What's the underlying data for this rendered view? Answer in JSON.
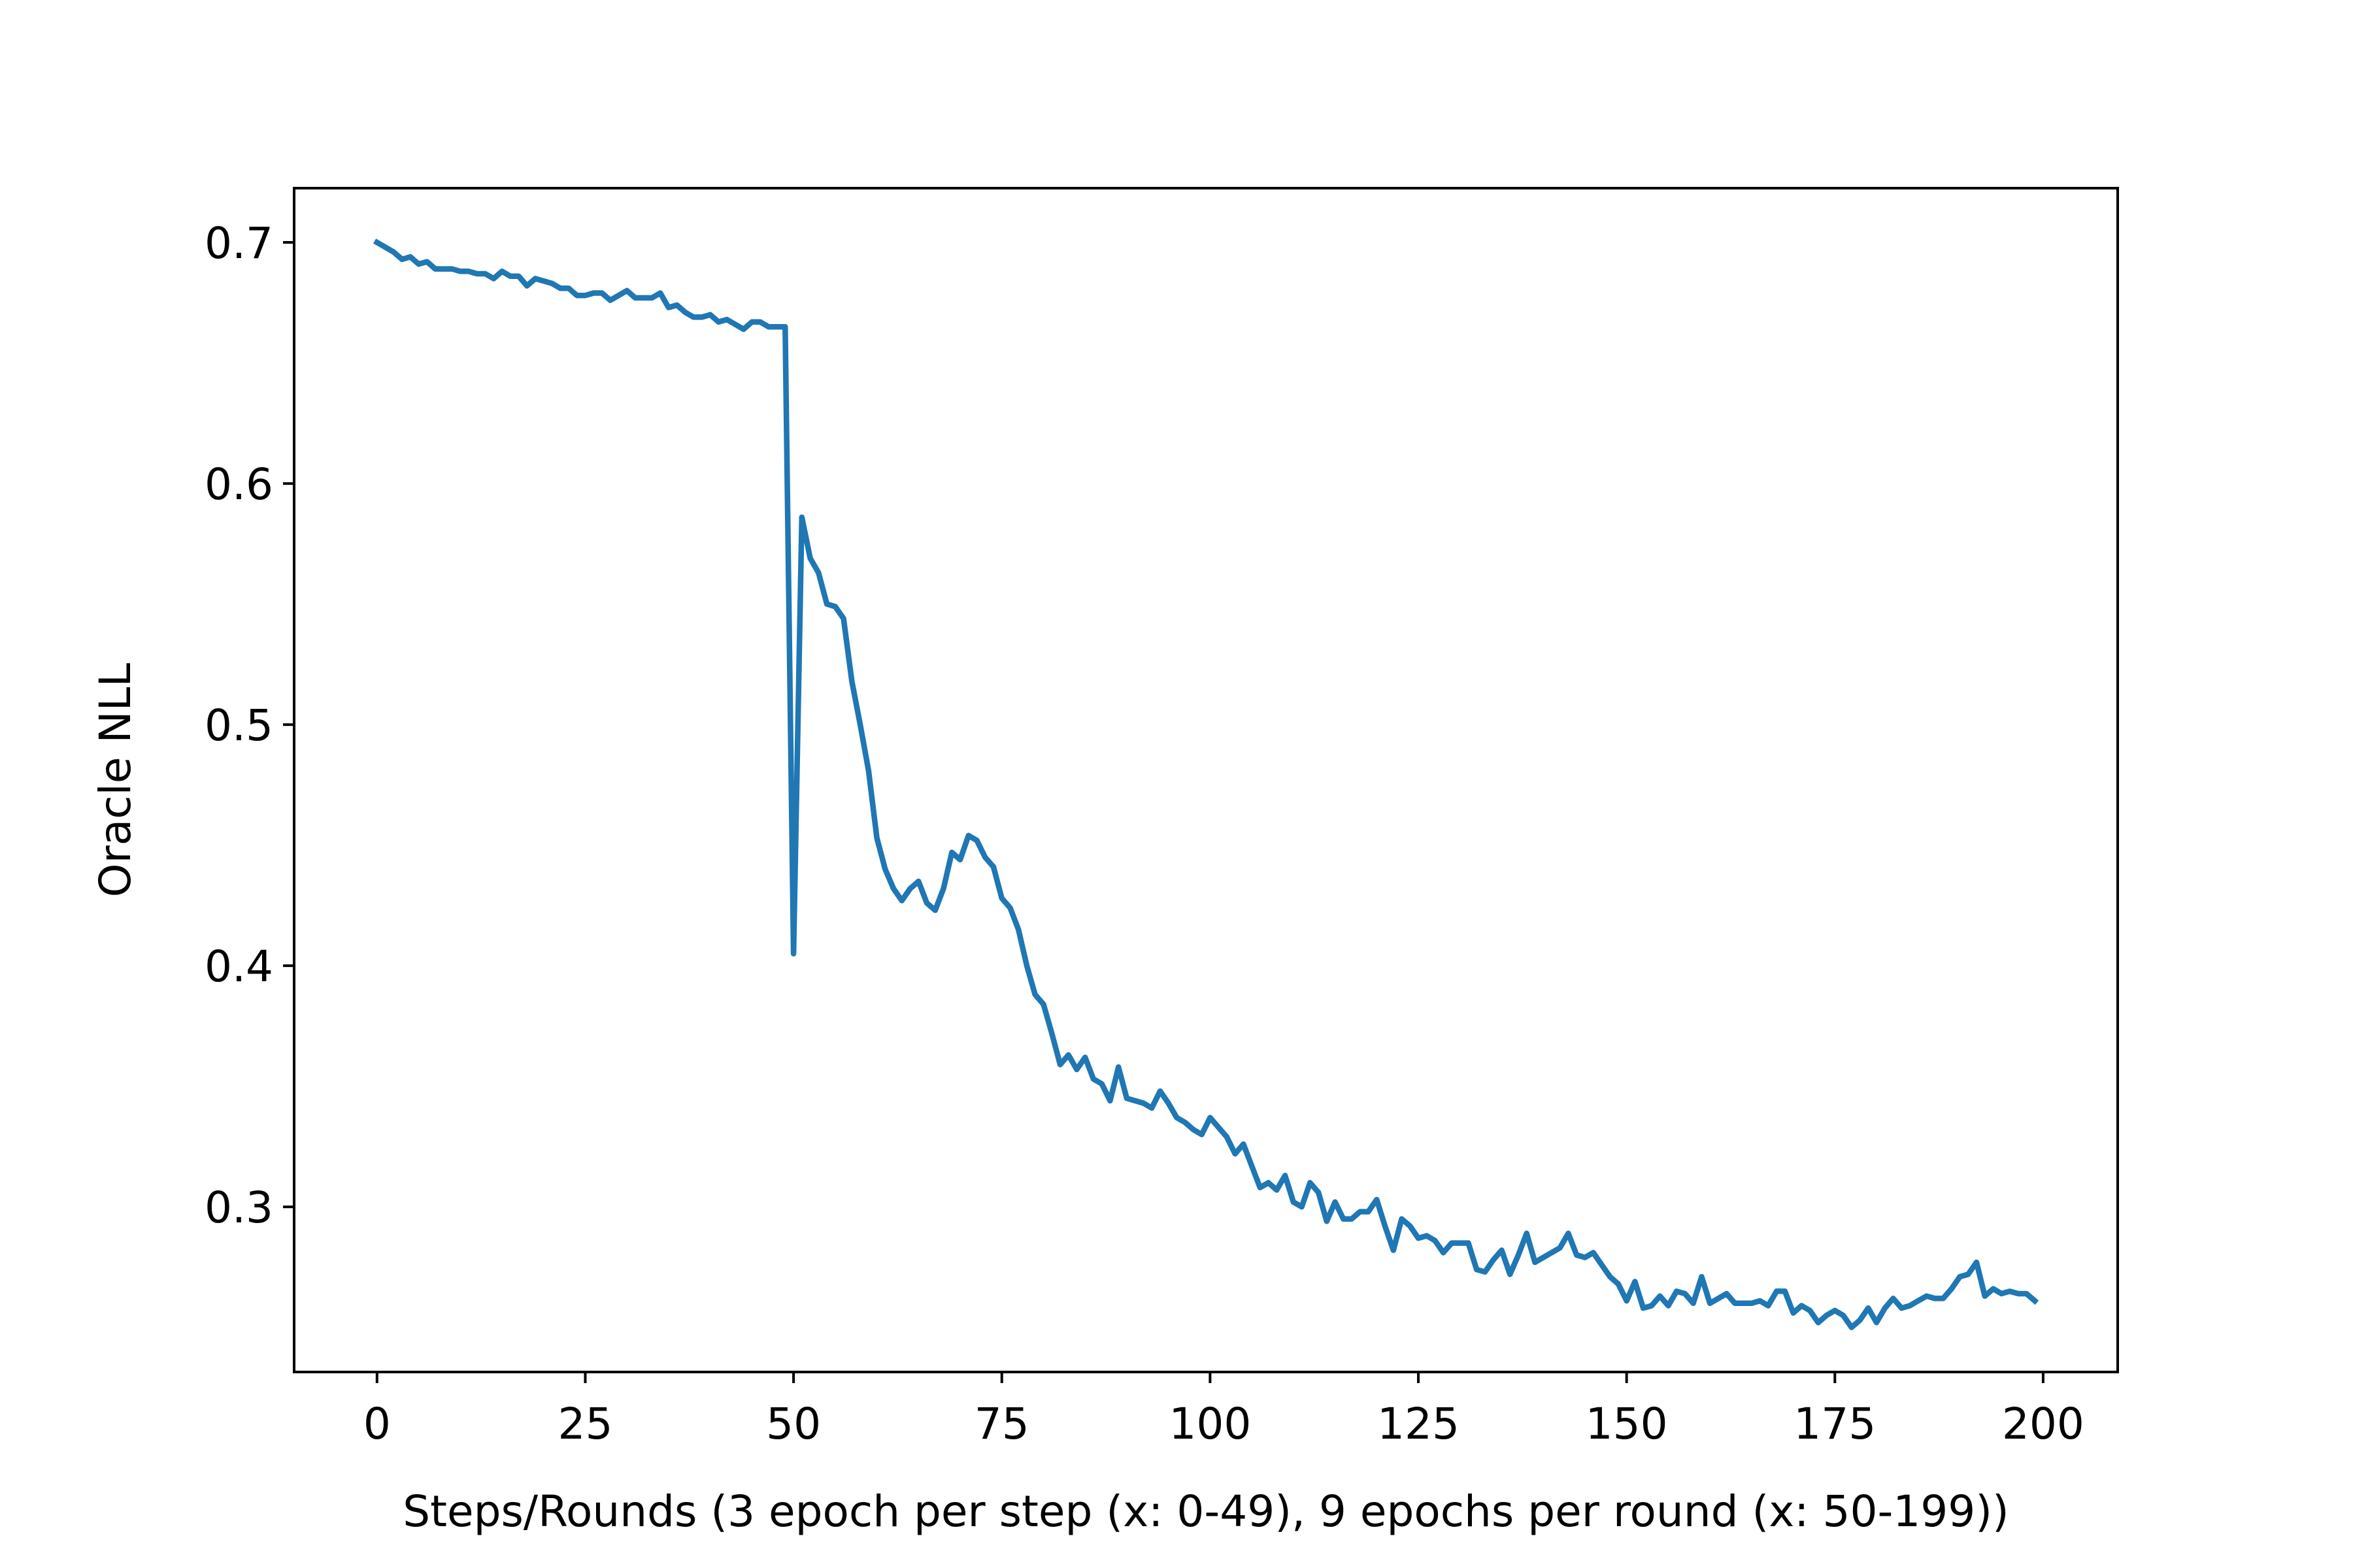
{
  "chart_data": {
    "type": "line",
    "xlabel": "Steps/Rounds (3 epoch per step (x: 0-49), 9 epochs per round (x: 50-199))",
    "ylabel": "Oracle NLL",
    "xlim": [
      -9.95,
      208.95
    ],
    "ylim": [
      0.2315,
      0.7225
    ],
    "xticks": [
      0,
      25,
      50,
      75,
      100,
      125,
      150,
      175,
      200
    ],
    "yticks": [
      0.3,
      0.4,
      0.5,
      0.6,
      0.7
    ],
    "xtick_labels": [
      "0",
      "25",
      "50",
      "75",
      "100",
      "125",
      "150",
      "175",
      "200"
    ],
    "ytick_labels": [
      "0.3",
      "0.4",
      "0.5",
      "0.6",
      "0.7"
    ],
    "grid": false,
    "legend": "none",
    "series": [
      {
        "color": "#1f77b4",
        "x": [
          0,
          1,
          2,
          3,
          4,
          5,
          6,
          7,
          8,
          9,
          10,
          11,
          12,
          13,
          14,
          15,
          16,
          17,
          18,
          19,
          20,
          21,
          22,
          23,
          24,
          25,
          26,
          27,
          28,
          29,
          30,
          31,
          32,
          33,
          34,
          35,
          36,
          37,
          38,
          39,
          40,
          41,
          42,
          43,
          44,
          45,
          46,
          47,
          48,
          49,
          50,
          51,
          52,
          53,
          54,
          55,
          56,
          57,
          58,
          59,
          60,
          61,
          62,
          63,
          64,
          65,
          66,
          67,
          68,
          69,
          70,
          71,
          72,
          73,
          74,
          75,
          76,
          77,
          78,
          79,
          80,
          81,
          82,
          83,
          84,
          85,
          86,
          87,
          88,
          89,
          90,
          91,
          92,
          93,
          94,
          95,
          96,
          97,
          98,
          99,
          100,
          101,
          102,
          103,
          104,
          105,
          106,
          107,
          108,
          109,
          110,
          111,
          112,
          113,
          114,
          115,
          116,
          117,
          118,
          119,
          120,
          121,
          122,
          123,
          124,
          125,
          126,
          127,
          128,
          129,
          130,
          131,
          132,
          133,
          134,
          135,
          136,
          137,
          138,
          139,
          140,
          141,
          142,
          143,
          144,
          145,
          146,
          147,
          148,
          149,
          150,
          151,
          152,
          153,
          154,
          155,
          156,
          157,
          158,
          159,
          160,
          161,
          162,
          163,
          164,
          165,
          166,
          167,
          168,
          169,
          170,
          171,
          172,
          173,
          174,
          175,
          176,
          177,
          178,
          179,
          180,
          181,
          182,
          183,
          184,
          185,
          186,
          187,
          188,
          189,
          190,
          191,
          192,
          193,
          194,
          195,
          196,
          197,
          198,
          199
        ],
        "values": [
          0.7,
          0.698,
          0.696,
          0.693,
          0.694,
          0.691,
          0.692,
          0.689,
          0.689,
          0.689,
          0.688,
          0.688,
          0.687,
          0.687,
          0.685,
          0.688,
          0.686,
          0.686,
          0.682,
          0.685,
          0.684,
          0.683,
          0.681,
          0.681,
          0.678,
          0.678,
          0.679,
          0.679,
          0.676,
          0.678,
          0.68,
          0.677,
          0.677,
          0.677,
          0.679,
          0.673,
          0.674,
          0.671,
          0.669,
          0.669,
          0.67,
          0.667,
          0.668,
          0.666,
          0.664,
          0.667,
          0.667,
          0.665,
          0.665,
          0.665,
          0.405,
          0.586,
          0.569,
          0.563,
          0.55,
          0.549,
          0.544,
          0.518,
          0.5,
          0.481,
          0.453,
          0.44,
          0.432,
          0.427,
          0.432,
          0.435,
          0.426,
          0.423,
          0.432,
          0.447,
          0.444,
          0.454,
          0.452,
          0.445,
          0.441,
          0.428,
          0.424,
          0.415,
          0.4,
          0.388,
          0.384,
          0.372,
          0.359,
          0.363,
          0.357,
          0.362,
          0.353,
          0.351,
          0.344,
          0.358,
          0.345,
          0.344,
          0.343,
          0.341,
          0.348,
          0.343,
          0.337,
          0.335,
          0.332,
          0.33,
          0.337,
          0.333,
          0.329,
          0.322,
          0.326,
          0.317,
          0.308,
          0.31,
          0.307,
          0.313,
          0.302,
          0.3,
          0.31,
          0.306,
          0.294,
          0.302,
          0.295,
          0.295,
          0.298,
          0.298,
          0.303,
          0.292,
          0.282,
          0.295,
          0.292,
          0.287,
          0.288,
          0.286,
          0.281,
          0.285,
          0.285,
          0.285,
          0.274,
          0.273,
          0.278,
          0.282,
          0.272,
          0.28,
          0.289,
          0.277,
          0.279,
          0.281,
          0.283,
          0.289,
          0.28,
          0.279,
          0.281,
          0.276,
          0.271,
          0.268,
          0.261,
          0.269,
          0.258,
          0.259,
          0.263,
          0.259,
          0.265,
          0.264,
          0.26,
          0.271,
          0.26,
          0.262,
          0.264,
          0.26,
          0.26,
          0.26,
          0.261,
          0.259,
          0.265,
          0.265,
          0.256,
          0.259,
          0.257,
          0.252,
          0.255,
          0.257,
          0.255,
          0.25,
          0.253,
          0.258,
          0.252,
          0.258,
          0.262,
          0.258,
          0.259,
          0.261,
          0.263,
          0.262,
          0.262,
          0.266,
          0.271,
          0.272,
          0.277,
          0.263,
          0.266,
          0.264,
          0.265,
          0.264,
          0.264,
          0.261
        ]
      }
    ]
  }
}
